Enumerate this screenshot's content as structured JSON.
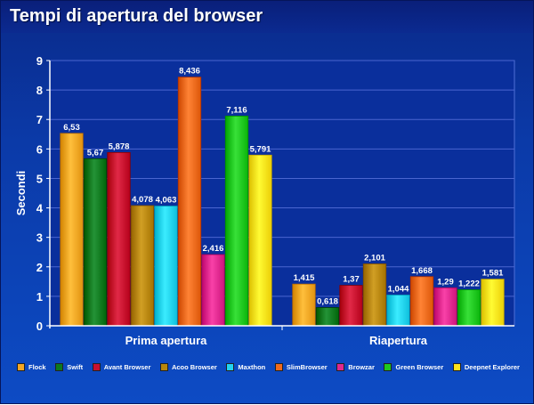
{
  "chart_data": {
    "type": "bar",
    "title": "Tempi di apertura del browser",
    "ylabel": "Secondi",
    "xlabel": "",
    "ylim": [
      0,
      9
    ],
    "yticks": [
      "0",
      "1",
      "2",
      "3",
      "4",
      "5",
      "6",
      "7",
      "8",
      "9"
    ],
    "categories": [
      "Prima apertura",
      "Riapertura"
    ],
    "grid": true,
    "legend_position": "bottom",
    "series": [
      {
        "name": "Flock",
        "color": "#f5a623",
        "values": [
          6.53,
          1.415
        ],
        "labels": [
          "6,53",
          "1,415"
        ]
      },
      {
        "name": "Swift",
        "color": "#0b7a1e",
        "values": [
          5.67,
          0.618
        ],
        "labels": [
          "5,67",
          "0,618"
        ]
      },
      {
        "name": "Avant Browser",
        "color": "#c8102e",
        "values": [
          5.878,
          1.37
        ],
        "labels": [
          "5,878",
          "1,37"
        ]
      },
      {
        "name": "Acoo Browser",
        "color": "#b8860b",
        "values": [
          4.078,
          2.101
        ],
        "labels": [
          "4,078",
          "2,101"
        ]
      },
      {
        "name": "Maxthon",
        "color": "#22d3f0",
        "values": [
          4.063,
          1.044
        ],
        "labels": [
          "4,063",
          "1,044"
        ]
      },
      {
        "name": "SlimBrowser",
        "color": "#f06a1c",
        "values": [
          8.436,
          1.668
        ],
        "labels": [
          "8,436",
          "1,668"
        ]
      },
      {
        "name": "Browzar",
        "color": "#e0288f",
        "values": [
          2.416,
          1.29
        ],
        "labels": [
          "2,416",
          "1,29"
        ]
      },
      {
        "name": "Green Browser",
        "color": "#1fc81f",
        "values": [
          7.116,
          1.222
        ],
        "labels": [
          "7,116",
          "1,222"
        ]
      },
      {
        "name": "Deepnet Explorer",
        "color": "#ffe21a",
        "values": [
          5.791,
          1.581
        ],
        "labels": [
          "5,791",
          "1,581"
        ]
      }
    ]
  }
}
